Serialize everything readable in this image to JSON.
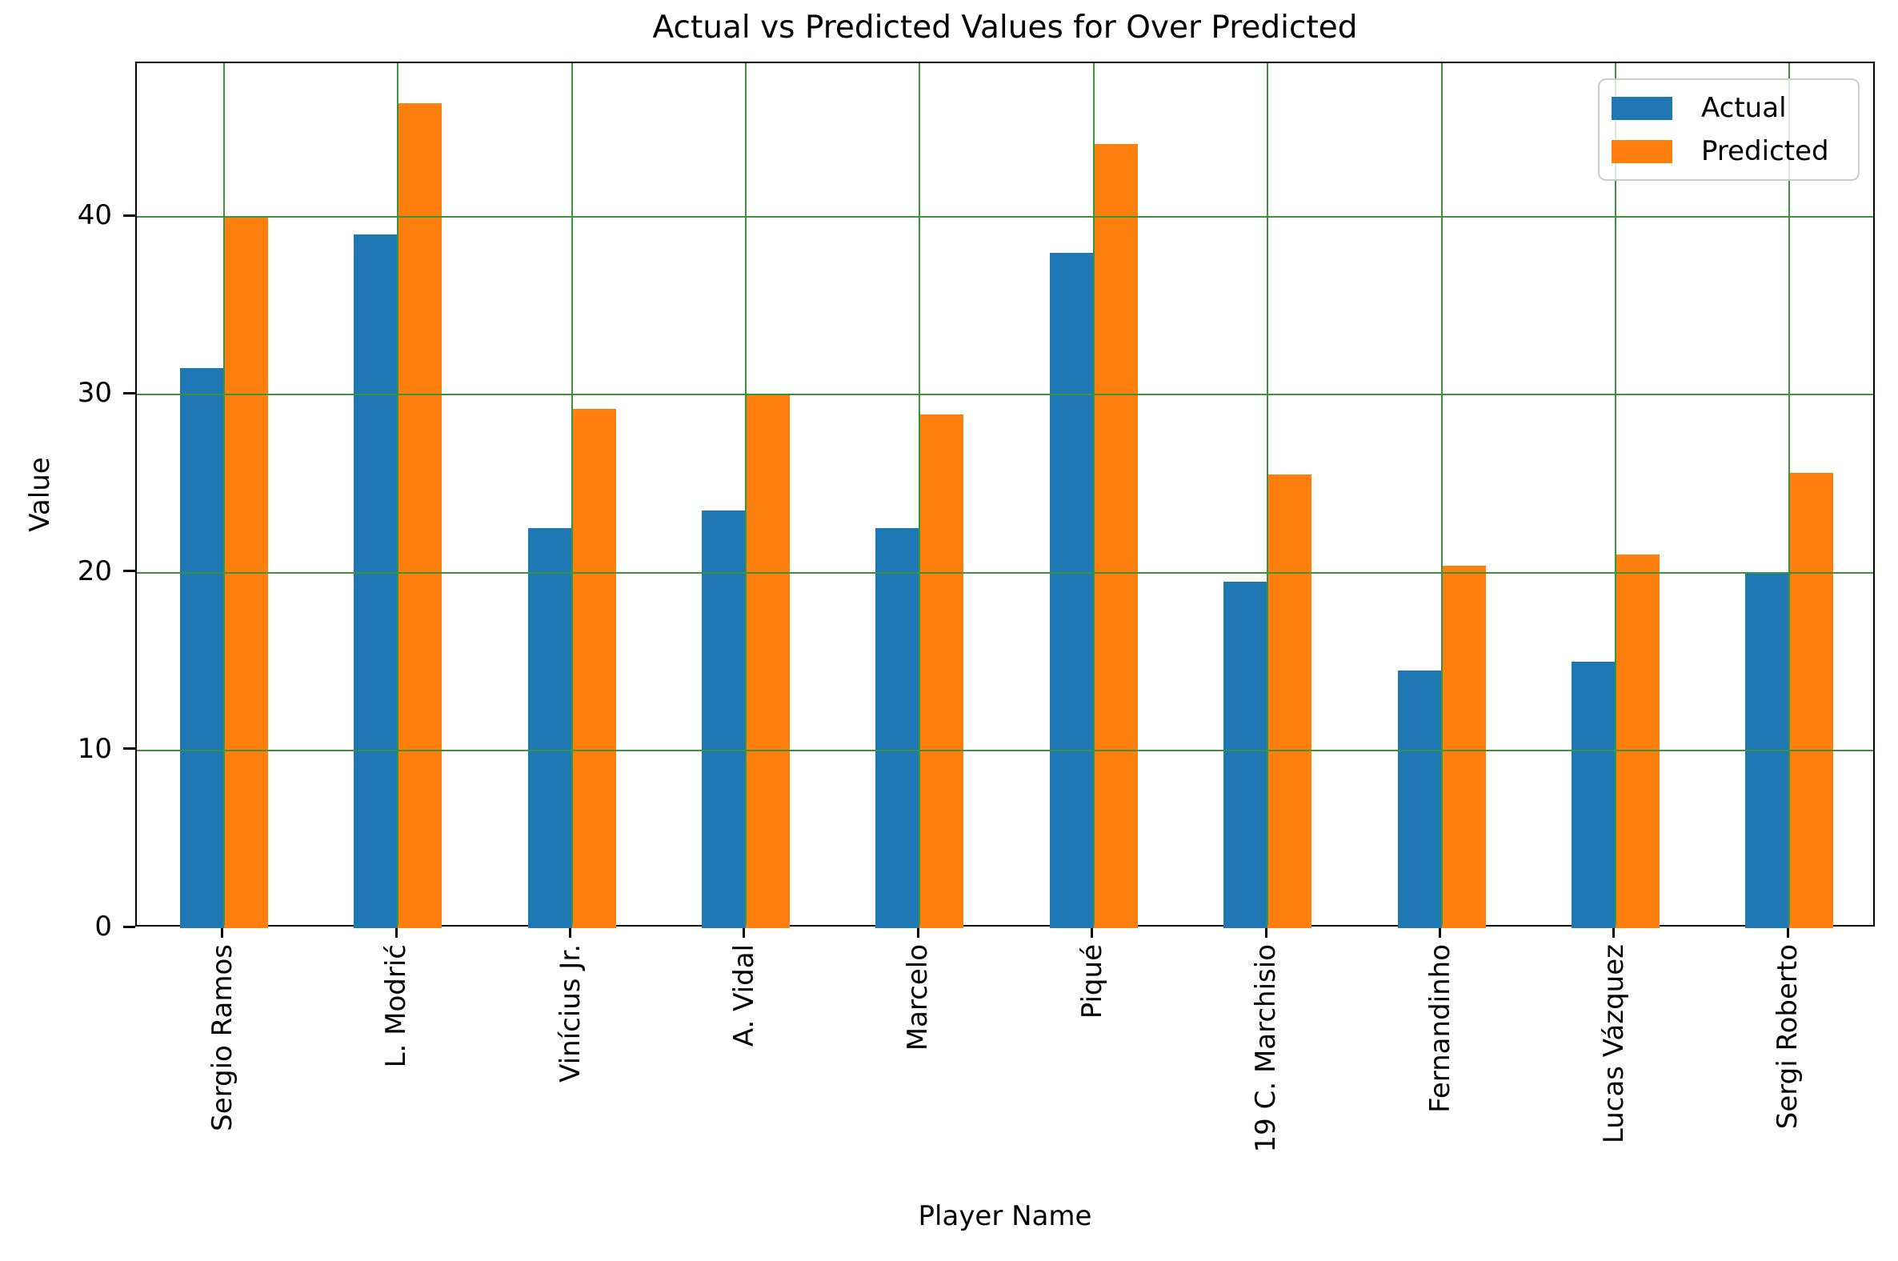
{
  "title": "Actual vs Predicted Values for Over Predicted",
  "chart_data": {
    "type": "bar",
    "title": "Actual vs Predicted Values for Over Predicted",
    "xlabel": "Player Name",
    "ylabel": "Value",
    "categories": [
      "Sergio Ramos",
      "L. Modrić",
      "Vinícius Jr.",
      "A. Vidal",
      "Marcelo",
      "Piqué",
      "19 C. Marchisio",
      "Fernandinho",
      "Lucas Vázquez",
      "Sergi Roberto"
    ],
    "series": [
      {
        "name": "Actual",
        "color": "#1f77b4",
        "values": [
          31.5,
          39.0,
          22.5,
          23.5,
          22.5,
          38.0,
          19.5,
          14.5,
          15.0,
          20.0
        ]
      },
      {
        "name": "Predicted",
        "color": "#ff7f0e",
        "values": [
          40.0,
          46.4,
          29.2,
          30.0,
          28.9,
          44.1,
          25.5,
          20.4,
          21.0,
          25.6
        ]
      }
    ],
    "ylim": [
      0,
      48.65
    ],
    "yticks": [
      0,
      10,
      20,
      30,
      40
    ],
    "grid": true,
    "grid_color": "#3a953a",
    "grid_above_bars": true,
    "legend_position": "upper right"
  },
  "legend": {
    "items": [
      {
        "label": "Actual",
        "color": "#1f77b4"
      },
      {
        "label": "Predicted",
        "color": "#ff7f0e"
      }
    ]
  }
}
